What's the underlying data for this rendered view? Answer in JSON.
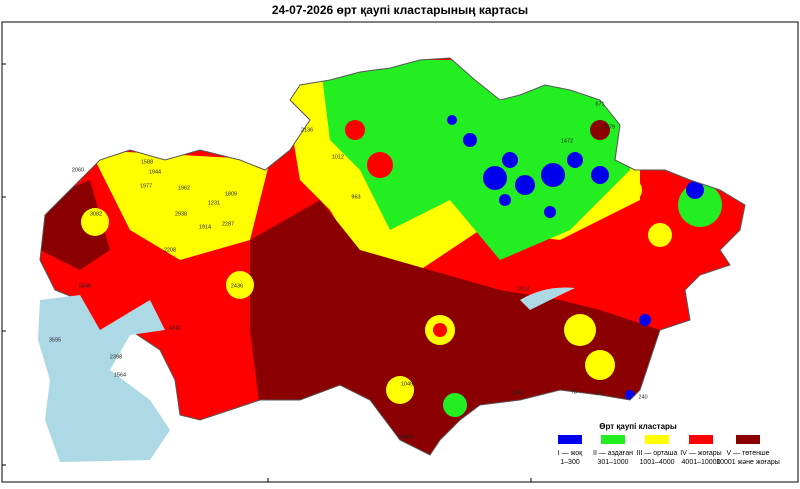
{
  "map": {
    "title": "24-07-2026 өрт қаупі кластарының картасы",
    "legend": {
      "title": "Өрт қаупі кластары",
      "items": [
        {
          "label": "I — жоқ",
          "range": "1–300",
          "color": "#0000ee"
        },
        {
          "label": "II — аздаған",
          "range": "301–1000",
          "color": "#22ee22"
        },
        {
          "label": "III — орташа",
          "range": "1001–4000",
          "color": "#ffff00"
        },
        {
          "label": "IV — жоғары",
          "range": "4001–10000",
          "color": "#ff0000"
        },
        {
          "label": "V — төтенше",
          "range": "10001 және жоғары",
          "color": "#8b0000"
        }
      ]
    },
    "stations": [
      "2060",
      "1588",
      "1944",
      "1977",
      "1962",
      "3082",
      "1231",
      "1809",
      "2938",
      "1914",
      "2287",
      "2208",
      "2436",
      "5845",
      "3595",
      "2398",
      "1564",
      "4241",
      "2136",
      "1012",
      "963",
      "1472",
      "671",
      "2479",
      "19466",
      "240",
      "18",
      "78",
      "1392",
      "1049",
      "1913"
    ]
  }
}
